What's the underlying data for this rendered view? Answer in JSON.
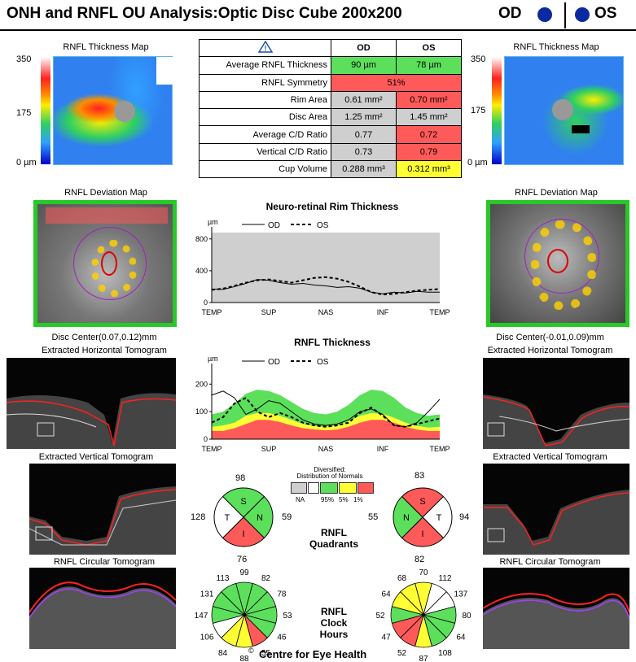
{
  "header": {
    "title": "ONH and RNFL OU Analysis:Optic Disc Cube 200x200",
    "od": "OD",
    "os": "OS",
    "eye_color": "#0a2aa0"
  },
  "thickness_map": {
    "title": "RNFL Thickness Map",
    "scale_max": "350",
    "scale_mid": "175",
    "scale_min": "0 µm"
  },
  "table": {
    "warning_icon": "warning-triangle-icon",
    "col_od": "OD",
    "col_os": "OS",
    "rows": [
      {
        "label": "Average RNFL Thickness",
        "od": "90 µm",
        "os": "78 µm",
        "od_color": "#5ce05c",
        "os_color": "#5ce05c"
      },
      {
        "label": "RNFL Symmetry",
        "merged": "51%",
        "color": "#ff5a5a"
      },
      {
        "label": "Rim Area",
        "od": "0.61 mm²",
        "os": "0.70 mm²",
        "od_color": "#cfcfcf",
        "os_color": "#ff5a5a"
      },
      {
        "label": "Disc Area",
        "od": "1.25 mm²",
        "os": "1.45 mm²",
        "od_color": "#cfcfcf",
        "os_color": "#cfcfcf"
      },
      {
        "label": "Average C/D Ratio",
        "od": "0.77",
        "os": "0.72",
        "od_color": "#cfcfcf",
        "os_color": "#ff5a5a"
      },
      {
        "label": "Vertical C/D Ratio",
        "od": "0.73",
        "os": "0.79",
        "od_color": "#cfcfcf",
        "os_color": "#ff5a5a"
      },
      {
        "label": "Cup Volume",
        "od": "0.288 mm³",
        "os": "0.312 mm³",
        "od_color": "#cfcfcf",
        "os_color": "#ffff33"
      }
    ]
  },
  "deviation_map": {
    "title": "RNFL Deviation Map"
  },
  "disc_center": {
    "od": "Disc Center(0.07,0.12)mm",
    "os": "Disc Center(-0.01,0.09)mm"
  },
  "tomograms": {
    "horizontal": "Extracted Horizontal Tomogram",
    "vertical": "Extracted Vertical Tomogram",
    "circular": "RNFL Circular Tomogram"
  },
  "legend_text": {
    "od": "OD",
    "os": "OS",
    "unit": "µm"
  },
  "chart_data": [
    {
      "type": "line",
      "title": "Neuro-retinal Rim Thickness",
      "ylabel": "µm",
      "ylim": [
        0,
        900
      ],
      "yticks": [
        "0",
        "400",
        "800"
      ],
      "x_labels": [
        "TEMP",
        "SUP",
        "NAS",
        "INF",
        "TEMP"
      ],
      "x": [
        0,
        1,
        2,
        3,
        4,
        5,
        6,
        7,
        8,
        9,
        10,
        11,
        12,
        13,
        14,
        15,
        16,
        17,
        18,
        19,
        20
      ],
      "normal_range_upper": 880,
      "series": [
        {
          "name": "OD",
          "style": "solid",
          "values": [
            170,
            165,
            200,
            240,
            290,
            280,
            250,
            230,
            240,
            220,
            210,
            190,
            200,
            180,
            130,
            110,
            130,
            120,
            140,
            130,
            130
          ]
        },
        {
          "name": "OS",
          "style": "dashed",
          "values": [
            160,
            175,
            210,
            250,
            280,
            290,
            270,
            250,
            280,
            310,
            320,
            300,
            260,
            200,
            130,
            100,
            110,
            130,
            150,
            160,
            170
          ]
        }
      ]
    },
    {
      "type": "line",
      "title": "RNFL Thickness",
      "ylabel": "µm",
      "ylim": [
        0,
        260
      ],
      "yticks": [
        "0",
        "100",
        "200"
      ],
      "x_labels": [
        "TEMP",
        "SUP",
        "NAS",
        "INF",
        "TEMP"
      ],
      "x": [
        0,
        1,
        2,
        3,
        4,
        5,
        6,
        7,
        8,
        9,
        10,
        11,
        12,
        13,
        14,
        15,
        16,
        17,
        18,
        19,
        20
      ],
      "band_1pct": [
        30,
        30,
        40,
        55,
        70,
        70,
        62,
        50,
        40,
        35,
        32,
        35,
        45,
        60,
        70,
        70,
        60,
        45,
        35,
        30,
        30
      ],
      "band_5pct": [
        45,
        50,
        60,
        85,
        95,
        95,
        85,
        70,
        55,
        48,
        45,
        50,
        65,
        85,
        95,
        92,
        78,
        60,
        48,
        42,
        45
      ],
      "band_95pct": [
        90,
        100,
        130,
        165,
        180,
        175,
        160,
        135,
        110,
        95,
        90,
        100,
        125,
        160,
        180,
        175,
        150,
        115,
        95,
        85,
        90
      ],
      "series": [
        {
          "name": "OD",
          "style": "solid",
          "values": [
            160,
            175,
            150,
            90,
            110,
            140,
            130,
            100,
            70,
            55,
            50,
            55,
            70,
            100,
            110,
            90,
            50,
            45,
            60,
            100,
            145
          ]
        },
        {
          "name": "OS",
          "style": "dashed",
          "values": [
            60,
            80,
            130,
            150,
            100,
            80,
            95,
            80,
            60,
            50,
            45,
            50,
            60,
            95,
            115,
            85,
            50,
            45,
            55,
            65,
            75
          ]
        }
      ]
    }
  ],
  "norms_legend": {
    "title1": "Diversified:",
    "title2": "Distribution of Normals",
    "items": [
      {
        "label": "NA",
        "color": "#cfcfcf"
      },
      {
        "label": "95%",
        "color": "#ffffff"
      },
      {
        "label": "5%",
        "color": "#5ce05c"
      },
      {
        "label": "1%",
        "color": "#ff5a5a"
      }
    ]
  },
  "quadrants": {
    "label1": "RNFL",
    "label2": "Quadrants",
    "od": {
      "S": "98",
      "N": "59",
      "I": "76",
      "T": "128",
      "colors": {
        "S": "#5ce05c",
        "N": "#5ce05c",
        "I": "#ff5a5a",
        "T": "#ffffff"
      }
    },
    "os": {
      "S": "83",
      "N": "55",
      "I": "82",
      "T": "94",
      "colors": {
        "S": "#ff5a5a",
        "N": "#5ce05c",
        "I": "#ff5a5a",
        "T": "#ffffff"
      }
    },
    "letters": {
      "S": "S",
      "N": "N",
      "I": "I",
      "T": "T"
    }
  },
  "clock_hours": {
    "label1": "RNFL",
    "label2": "Clock",
    "label3": "Hours",
    "od": {
      "values": [
        "99",
        "82",
        "78",
        "53",
        "46",
        "55",
        "88",
        "84",
        "106",
        "147",
        "131",
        "113"
      ],
      "colors": [
        "#5ce05c",
        "#5ce05c",
        "#5ce05c",
        "#5ce05c",
        "#5ce05c",
        "#ff5a5a",
        "#ffff33",
        "#ffff33",
        "#ffffff",
        "#5ce05c",
        "#5ce05c",
        "#5ce05c"
      ]
    },
    "os": {
      "values": [
        "70",
        "112",
        "137",
        "80",
        "64",
        "108",
        "87",
        "52",
        "47",
        "52",
        "64",
        "68"
      ],
      "colors": [
        "#ffff33",
        "#ffffff",
        "#ffffff",
        "#5ce05c",
        "#5ce05c",
        "#5ce05c",
        "#ffff33",
        "#ff5a5a",
        "#ff5a5a",
        "#5ce05c",
        "#ffff33",
        "#ffff33"
      ]
    }
  },
  "footer": {
    "copyright": "©",
    "org": "Centre for Eye Health"
  }
}
